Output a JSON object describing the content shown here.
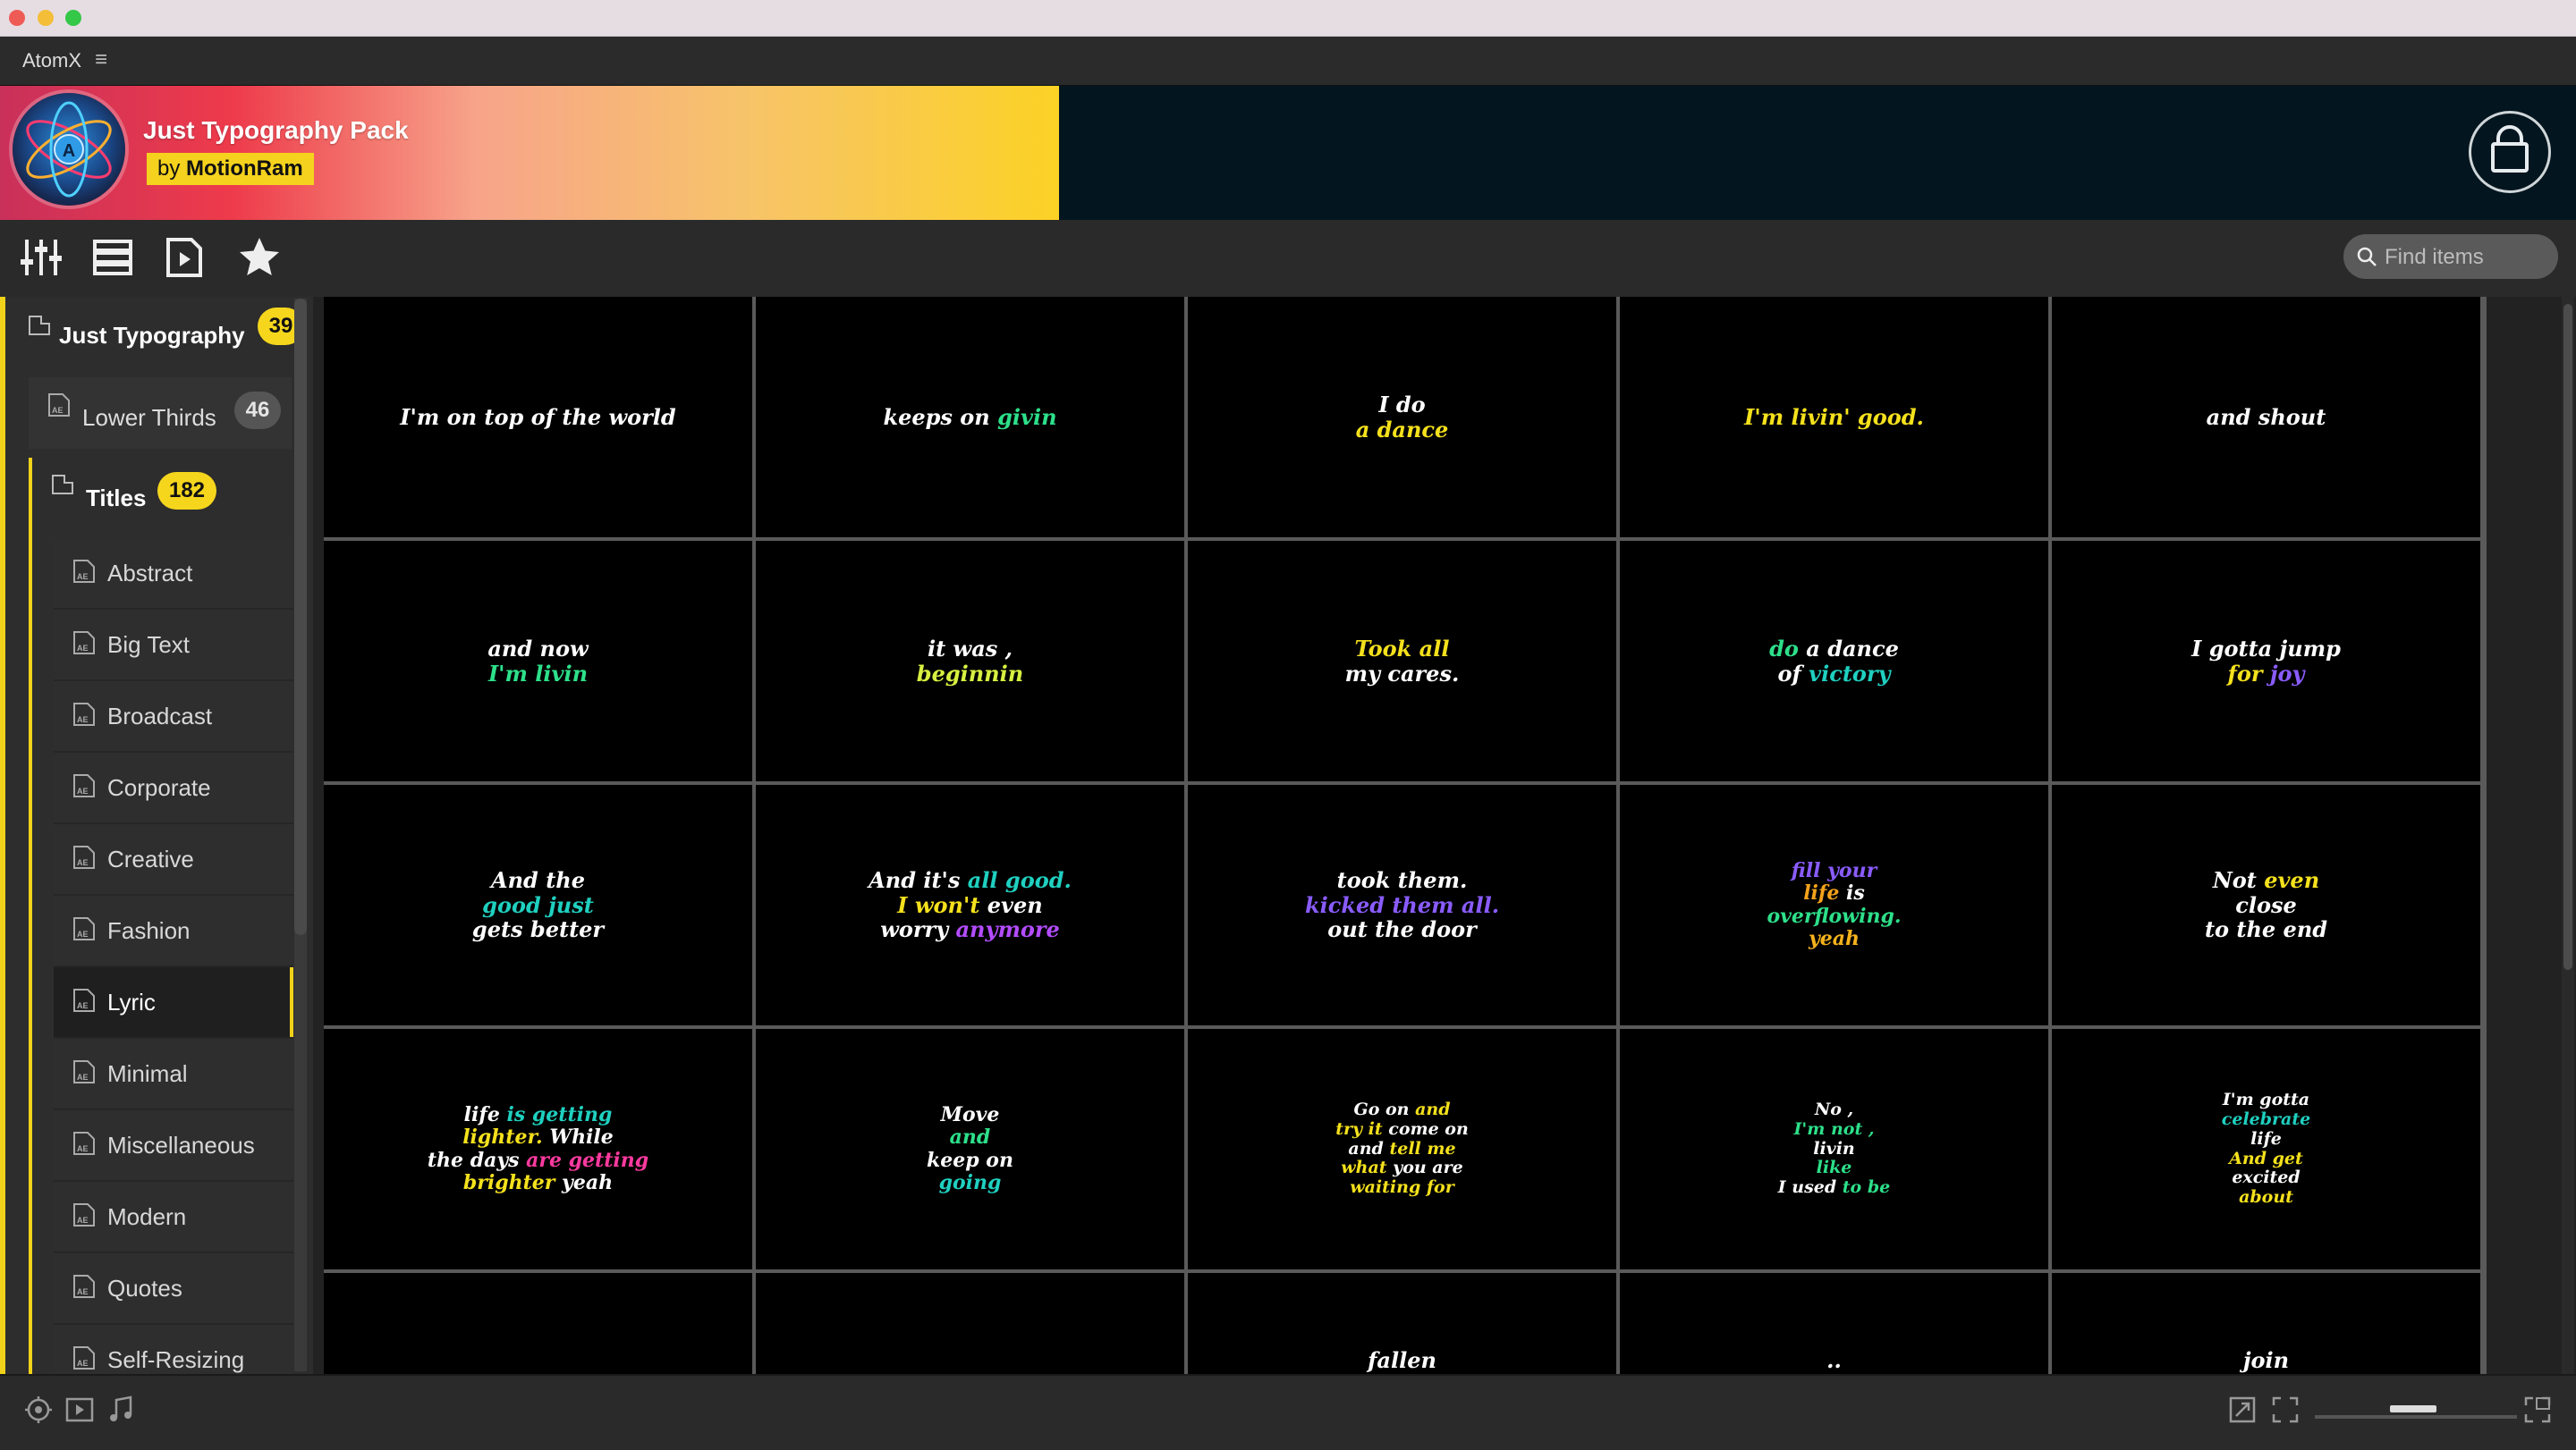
{
  "window": {
    "traffic_colors": [
      "#ee5b55",
      "#f4be38",
      "#34c748"
    ]
  },
  "app": {
    "name": "AtomX"
  },
  "banner": {
    "pack_title": "Just Typography Pack",
    "author_prefix": "by",
    "author": "MotionRam"
  },
  "search": {
    "placeholder": "Find items"
  },
  "sidebar": {
    "root": {
      "label": "Just Typography",
      "count": "39"
    },
    "lower_thirds": {
      "label": "Lower Thirds",
      "count": "46"
    },
    "titles": {
      "label": "Titles",
      "count": "182"
    },
    "subcategories": [
      {
        "label": "Abstract"
      },
      {
        "label": "Big Text"
      },
      {
        "label": "Broadcast"
      },
      {
        "label": "Corporate"
      },
      {
        "label": "Creative"
      },
      {
        "label": "Fashion"
      },
      {
        "label": "Lyric",
        "active": true
      },
      {
        "label": "Minimal"
      },
      {
        "label": "Miscellaneous"
      },
      {
        "label": "Modern"
      },
      {
        "label": "Quotes"
      },
      {
        "label": "Self-Resizing"
      }
    ]
  },
  "thumbnails": [
    {
      "lines": [
        [
          [
            "I'm on top of the world",
            "#ffffff"
          ]
        ]
      ]
    },
    {
      "lines": [
        [
          [
            "keeps on ",
            "#ffffff"
          ],
          [
            "givin",
            "#2de08a"
          ]
        ]
      ]
    },
    {
      "lines": [
        [
          [
            "I do",
            "#ffffff"
          ]
        ],
        [
          [
            "a dance",
            "#f5e11c"
          ]
        ]
      ]
    },
    {
      "lines": [
        [
          [
            "I'm livin' good.",
            "#f5e11c"
          ]
        ]
      ]
    },
    {
      "lines": [
        [
          [
            "and shout",
            "#ffffff"
          ]
        ]
      ]
    },
    {
      "lines": [
        [
          [
            "and now",
            "#ffffff"
          ]
        ],
        [
          [
            "I'm livin",
            "#2de08a"
          ]
        ]
      ]
    },
    {
      "lines": [
        [
          [
            "it was ,",
            "#ffffff"
          ]
        ],
        [
          [
            "beginnin",
            "#d8f040"
          ]
        ]
      ]
    },
    {
      "lines": [
        [
          [
            "Took all",
            "#f5e11c"
          ]
        ],
        [
          [
            "my cares.",
            "#ffffff"
          ]
        ]
      ]
    },
    {
      "lines": [
        [
          [
            "do ",
            "#2de08a"
          ],
          [
            "a dance",
            "#ffffff"
          ]
        ],
        [
          [
            "of ",
            "#ffffff"
          ],
          [
            "victory",
            "#1fd0c0"
          ]
        ]
      ]
    },
    {
      "lines": [
        [
          [
            "I gotta jump",
            "#ffffff"
          ]
        ],
        [
          [
            "for ",
            "#f5e11c"
          ],
          [
            "joy",
            "#8a5cff"
          ]
        ]
      ]
    },
    {
      "lines": [
        [
          [
            "And the",
            "#ffffff"
          ]
        ],
        [
          [
            "good just",
            "#1fd0c0"
          ]
        ],
        [
          [
            "gets better",
            "#ffffff"
          ]
        ]
      ]
    },
    {
      "lines": [
        [
          [
            "And it's ",
            "#ffffff"
          ],
          [
            "all good.",
            "#1fd0c0"
          ]
        ],
        [
          [
            "I won't ",
            "#f5e11c"
          ],
          [
            "even",
            "#ffffff"
          ]
        ],
        [
          [
            "worry ",
            "#ffffff"
          ],
          [
            "anymore",
            "#b34cff"
          ]
        ]
      ]
    },
    {
      "lines": [
        [
          [
            "took them.",
            "#ffffff"
          ]
        ],
        [
          [
            "kicked them all.",
            "#8a5cff"
          ]
        ],
        [
          [
            "out the door",
            "#ffffff"
          ]
        ]
      ]
    },
    {
      "lines": [
        [
          [
            "fill your",
            "#8a5cff"
          ]
        ],
        [
          [
            "life ",
            "#f5a21c"
          ],
          [
            "is",
            "#ffffff"
          ]
        ],
        [
          [
            "overflowing.",
            "#2de08a"
          ]
        ],
        [
          [
            "yeah",
            "#f5b21c"
          ]
        ]
      ]
    },
    {
      "lines": [
        [
          [
            "Not ",
            "#ffffff"
          ],
          [
            "even",
            "#f5e11c"
          ]
        ],
        [
          [
            "close",
            "#ffffff"
          ]
        ],
        [
          [
            "to the end",
            "#ffffff"
          ]
        ]
      ]
    },
    {
      "lines": [
        [
          [
            "life ",
            "#ffffff"
          ],
          [
            "is getting",
            "#1fd0c0"
          ]
        ],
        [
          [
            "lighter. ",
            "#f5e11c"
          ],
          [
            "While",
            "#ffffff"
          ]
        ],
        [
          [
            "the days ",
            "#ffffff"
          ],
          [
            "are getting",
            "#ff3aa0"
          ]
        ],
        [
          [
            "brighter ",
            "#f5e11c"
          ],
          [
            "yeah",
            "#ffffff"
          ]
        ]
      ]
    },
    {
      "lines": [
        [
          [
            "Move",
            "#ffffff"
          ]
        ],
        [
          [
            "and",
            "#2de08a"
          ]
        ],
        [
          [
            "keep on",
            "#ffffff"
          ]
        ],
        [
          [
            "going",
            "#1fd0c0"
          ]
        ]
      ]
    },
    {
      "lines": [
        [
          [
            "Go on ",
            "#ffffff"
          ],
          [
            "and",
            "#f5e11c"
          ]
        ],
        [
          [
            "try it ",
            "#f5e11c"
          ],
          [
            "come on",
            "#ffffff"
          ]
        ],
        [
          [
            "and ",
            "#ffffff"
          ],
          [
            "tell me",
            "#f5e11c"
          ]
        ],
        [
          [
            "what ",
            "#f5e11c"
          ],
          [
            "you are",
            "#ffffff"
          ]
        ],
        [
          [
            "waiting for",
            "#f5e11c"
          ]
        ]
      ]
    },
    {
      "lines": [
        [
          [
            "No ,",
            "#ffffff"
          ]
        ],
        [
          [
            "I'm not ,",
            "#2de08a"
          ]
        ],
        [
          [
            "livin",
            "#ffffff"
          ]
        ],
        [
          [
            "like",
            "#2de08a"
          ]
        ],
        [
          [
            "I used ",
            "#ffffff"
          ],
          [
            "to be",
            "#2de08a"
          ]
        ]
      ]
    },
    {
      "lines": [
        [
          [
            "I'm gotta",
            "#ffffff"
          ]
        ],
        [
          [
            "celebrate",
            "#1fd0c0"
          ]
        ],
        [
          [
            "life",
            "#ffffff"
          ]
        ],
        [
          [
            "And get",
            "#f5e11c"
          ]
        ],
        [
          [
            "excited",
            "#ffffff"
          ]
        ],
        [
          [
            "about",
            "#f5e11c"
          ]
        ]
      ]
    },
    {
      "lines": []
    },
    {
      "lines": []
    },
    {
      "lines": [
        [
          [
            "fallen",
            "#ffffff"
          ]
        ]
      ]
    },
    {
      "lines": [
        [
          [
            "..",
            "#ffffff"
          ]
        ]
      ]
    },
    {
      "lines": [
        [
          [
            "join",
            "#ffffff"
          ]
        ]
      ]
    }
  ]
}
